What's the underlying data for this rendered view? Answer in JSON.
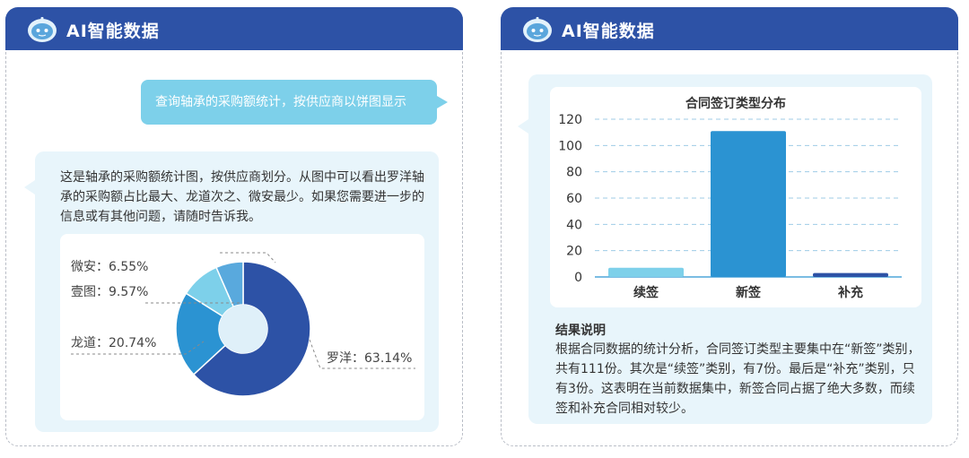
{
  "header": {
    "title": "AI智能数据"
  },
  "left": {
    "user_message": "查询轴承的采购额统计，按供应商以饼图显示",
    "ai_message": "这是轴承的采购额统计图，按供应商划分。从图中可以看出罗洋轴承的采购额占比最大、龙道次之、微安最少。如果您需要进一步的信息或有其他问题，请随时告诉我。",
    "chart_data": {
      "type": "pie",
      "labels": [
        "罗洋",
        "龙道",
        "壹图",
        "微安"
      ],
      "values": [
        63.14,
        20.74,
        9.57,
        6.55
      ],
      "label_texts": [
        "罗洋：63.14%",
        "龙道：20.74%",
        "壹图：9.57%",
        "微安：6.55%"
      ],
      "colors": [
        "#2d52a6",
        "#2b93d2",
        "#7dd0ea",
        "#59a9dd"
      ]
    }
  },
  "right": {
    "chart_data": {
      "type": "bar",
      "title": "合同签订类型分布",
      "categories": [
        "续签",
        "新签",
        "补充"
      ],
      "values": [
        7,
        111,
        3
      ],
      "ylim": [
        0,
        120
      ],
      "yticks": [
        0,
        20,
        40,
        60,
        80,
        100,
        120
      ],
      "colors": [
        "#7dd0ea",
        "#2b93d2",
        "#2d52a6"
      ],
      "grid": true
    },
    "result_title": "结果说明",
    "result_text": "根据合同数据的统计分析，合同签订类型主要集中在“新签”类别，共有111份。其次是“续签”类别，有7份。最后是“补充”类别，只有3份。这表明在当前数据集中，新签合同占据了绝大多数，而续签和补充合同相对较少。"
  }
}
